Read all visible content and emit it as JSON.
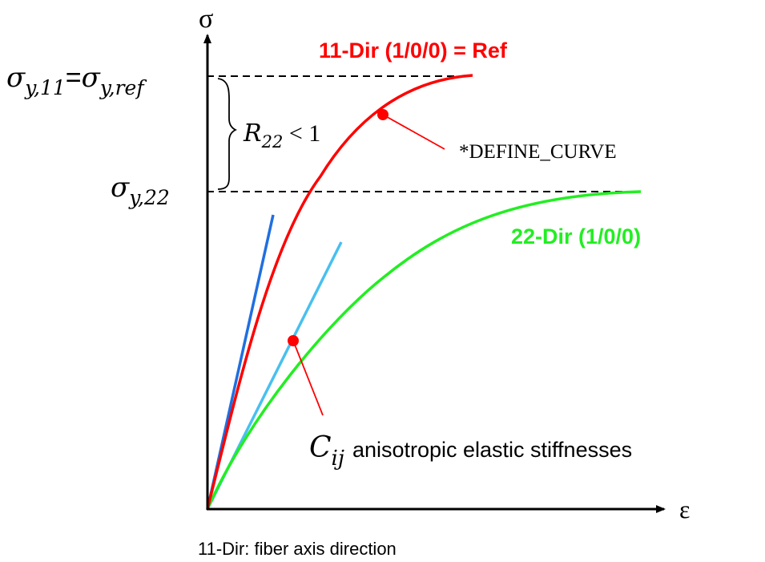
{
  "axes": {
    "y_label": "σ",
    "x_label": "ε"
  },
  "levels": {
    "sigma_ref_a": "σ",
    "sigma_ref_a_sub": "y,11",
    "sigma_ref_eq": "=",
    "sigma_ref_b": "σ",
    "sigma_ref_b_sub": "y,ref",
    "sigma_22": "σ",
    "sigma_22_sub": "y,22"
  },
  "ratio": {
    "symbol": "R",
    "sub": "22",
    "rest": " < 1"
  },
  "curves": {
    "red_label": "11-Dir (1/0/0) = Ref",
    "green_label": "22-Dir (1/0/0)",
    "define_curve": "*DEFINE_CURVE"
  },
  "stiffness": {
    "symbol": "C",
    "sub": "ij",
    "text": "anisotropic elastic stiffnesses"
  },
  "footnote": "11-Dir: fiber axis direction",
  "colors": {
    "red": "#ff0000",
    "green": "#22ee22",
    "dark_blue": "#1f6fe0",
    "light_blue": "#48c0f0",
    "axis": "#000000"
  }
}
